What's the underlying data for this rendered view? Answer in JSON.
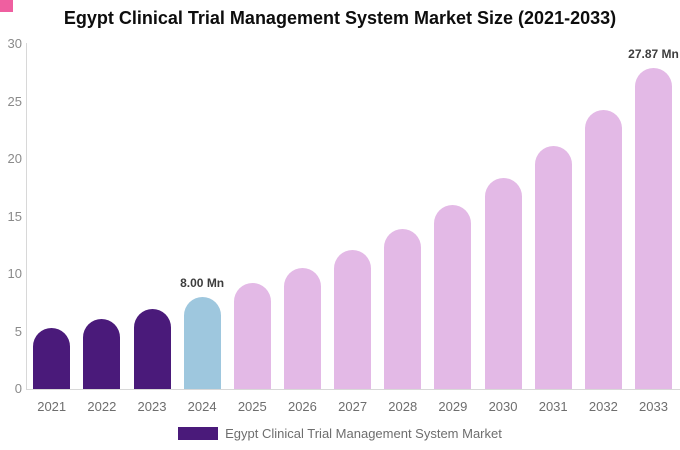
{
  "corner_mark": {
    "color": "#ef5fa0"
  },
  "colors": {
    "background": "#ffffff",
    "title_text": "#0d0d0d",
    "axis_line": "#d8d8d8",
    "y_tick_text": "#8a8a8a",
    "x_label_text": "#6e6e6e",
    "value_label_text": "#3d3d3d",
    "bar_purple": "#4a1a7a",
    "bar_blue": "#9ec7de",
    "bar_plum": "#e3b9e6"
  },
  "chart_data": {
    "type": "bar",
    "title": "Egypt Clinical Trial Management System Market Size (2021-2033)",
    "xlabel": "",
    "ylabel": "",
    "unit": "Mn",
    "categories": [
      "2021",
      "2022",
      "2023",
      "2024",
      "2025",
      "2026",
      "2027",
      "2028",
      "2029",
      "2030",
      "2031",
      "2032",
      "2033"
    ],
    "values": [
      5.28,
      6.06,
      6.96,
      8.0,
      9.19,
      10.56,
      12.13,
      13.93,
      16.0,
      18.39,
      21.12,
      24.26,
      27.87
    ],
    "bar_colors": [
      "#4a1a7a",
      "#4a1a7a",
      "#4a1a7a",
      "#9ec7de",
      "#e3b9e6",
      "#e3b9e6",
      "#e3b9e6",
      "#e3b9e6",
      "#e3b9e6",
      "#e3b9e6",
      "#e3b9e6",
      "#e3b9e6",
      "#e3b9e6"
    ],
    "annotations": [
      {
        "index": 3,
        "text": "8.00 Mn"
      },
      {
        "index": 12,
        "text": "27.87 Mn"
      }
    ],
    "ylim": [
      0,
      30
    ],
    "yticks": [
      0,
      5,
      10,
      15,
      20,
      25,
      30
    ],
    "grid": "off",
    "legend_position": "bottom-center",
    "legend": {
      "label": "Egypt Clinical Trial Management System Market",
      "swatch_color": "#4a1a7a"
    }
  }
}
